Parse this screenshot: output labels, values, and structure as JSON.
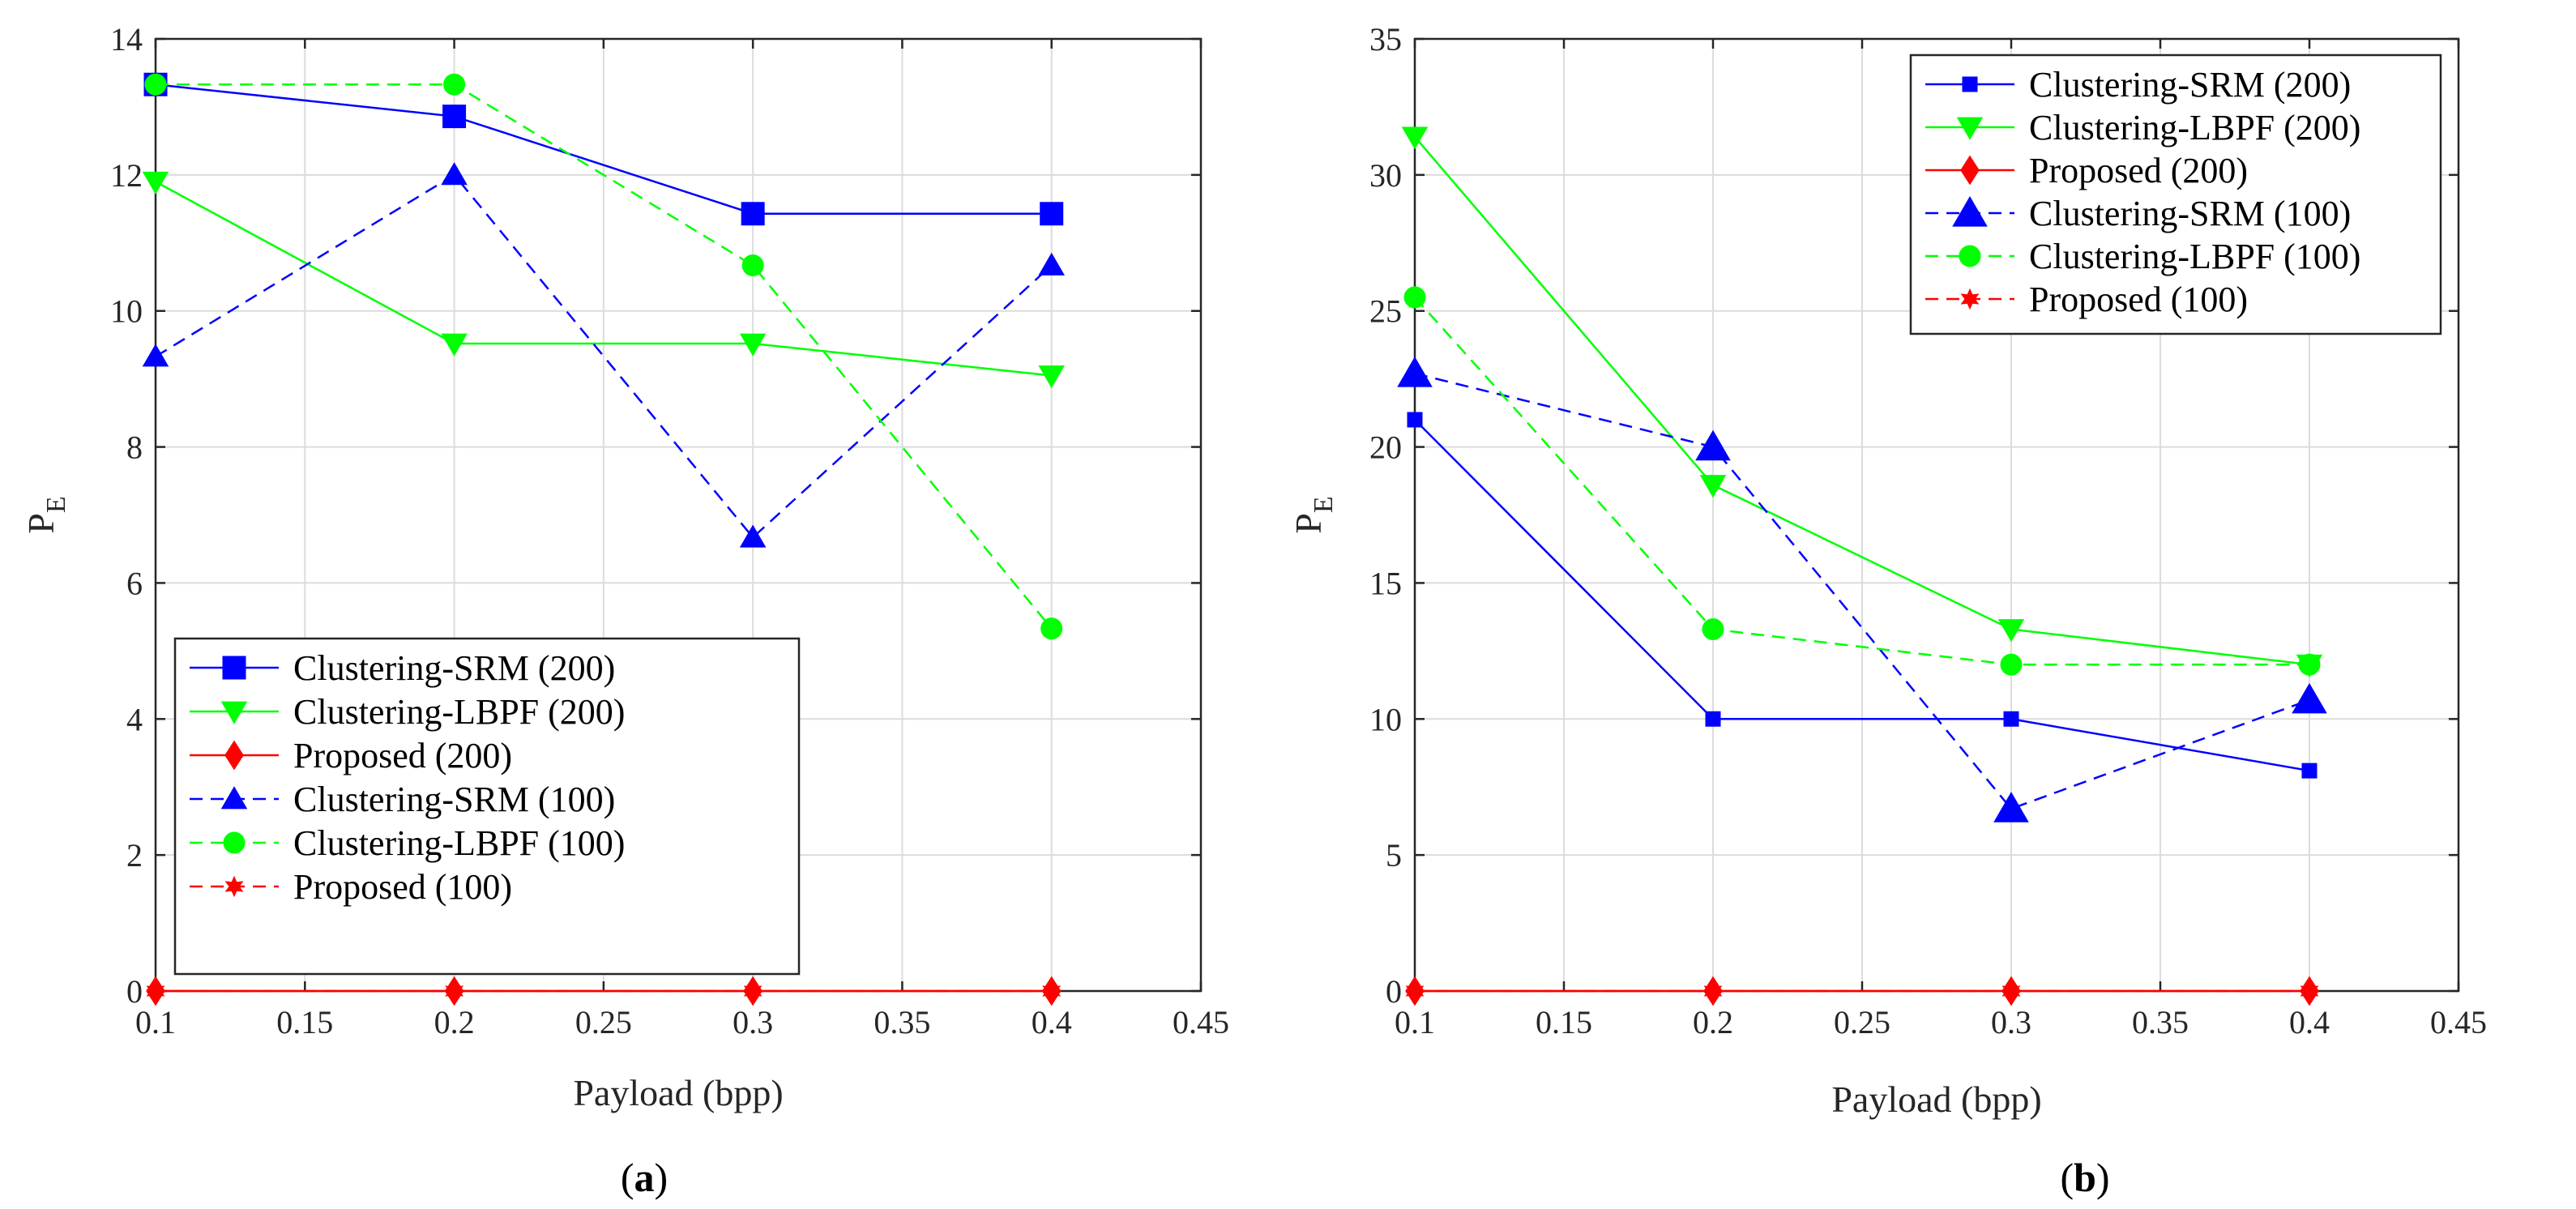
{
  "chart_data": [
    {
      "type": "line",
      "panel_label": "a",
      "xlabel": "Payload (bpp)",
      "ylabel": "P",
      "ylabel_sub": "E",
      "xlim": [
        0.1,
        0.45
      ],
      "ylim": [
        0,
        14
      ],
      "xticks": [
        0.1,
        0.15,
        0.2,
        0.25,
        0.3,
        0.35,
        0.4,
        0.45
      ],
      "xtick_labels": [
        "0.1",
        "0.15",
        "0.2",
        "0.25",
        "0.3",
        "0.35",
        "0.4",
        "0.45"
      ],
      "yticks": [
        0,
        2,
        4,
        6,
        8,
        10,
        12,
        14
      ],
      "ytick_labels": [
        "0",
        "2",
        "4",
        "6",
        "8",
        "10",
        "12",
        "14"
      ],
      "grid": true,
      "legend_position": "bottom-left",
      "x": [
        0.1,
        0.2,
        0.3,
        0.4
      ],
      "series": [
        {
          "name": "Clustering-SRM (200)",
          "values": [
            13.33,
            12.86,
            11.43,
            11.43
          ],
          "color": "#0000ff",
          "dash": "solid",
          "marker": "square",
          "msize": 14
        },
        {
          "name": "Clustering-LBPF (200)",
          "values": [
            11.9,
            9.52,
            9.52,
            9.05
          ],
          "color": "#00ff00",
          "dash": "solid",
          "marker": "triangle-down",
          "msize": 14
        },
        {
          "name": "Proposed (200)",
          "values": [
            0,
            0,
            0,
            0
          ],
          "color": "#ff0000",
          "dash": "solid",
          "marker": "diamond",
          "msize": 14
        },
        {
          "name": "Clustering-SRM (100)",
          "values": [
            9.33,
            12.0,
            6.67,
            10.67
          ],
          "color": "#0000ff",
          "dash": "dashed",
          "marker": "triangle-up",
          "msize": 14
        },
        {
          "name": "Clustering-LBPF (100)",
          "values": [
            13.33,
            13.33,
            10.67,
            5.33
          ],
          "color": "#00ff00",
          "dash": "dashed",
          "marker": "circle",
          "msize": 13
        },
        {
          "name": "Proposed (100)",
          "values": [
            0,
            0,
            0,
            0
          ],
          "color": "#ff0000",
          "dash": "dashed",
          "marker": "hexagram",
          "msize": 12
        }
      ]
    },
    {
      "type": "line",
      "panel_label": "b",
      "xlabel": "Payload (bpp)",
      "ylabel": "P",
      "ylabel_sub": "E",
      "xlim": [
        0.1,
        0.45
      ],
      "ylim": [
        0,
        35
      ],
      "xticks": [
        0.1,
        0.15,
        0.2,
        0.25,
        0.3,
        0.35,
        0.4,
        0.45
      ],
      "xtick_labels": [
        "0.1",
        "0.15",
        "0.2",
        "0.25",
        "0.3",
        "0.35",
        "0.4",
        "0.45"
      ],
      "yticks": [
        0,
        5,
        10,
        15,
        20,
        25,
        30,
        35
      ],
      "ytick_labels": [
        "0",
        "5",
        "10",
        "15",
        "20",
        "25",
        "30",
        "35"
      ],
      "grid": true,
      "legend_position": "top-right",
      "x": [
        0.1,
        0.2,
        0.3,
        0.4
      ],
      "series": [
        {
          "name": "Clustering-SRM (200)",
          "values": [
            21.0,
            10.0,
            10.0,
            8.1
          ],
          "color": "#0000ff",
          "dash": "solid",
          "marker": "square",
          "msize": 9
        },
        {
          "name": "Clustering-LBPF (200)",
          "values": [
            31.4,
            18.6,
            13.3,
            12.0
          ],
          "color": "#00ff00",
          "dash": "solid",
          "marker": "triangle-down",
          "msize": 14
        },
        {
          "name": "Proposed (200)",
          "values": [
            0,
            0,
            0,
            0
          ],
          "color": "#ff0000",
          "dash": "solid",
          "marker": "diamond",
          "msize": 14
        },
        {
          "name": "Clustering-SRM (100)",
          "values": [
            22.7,
            20.0,
            6.7,
            10.7
          ],
          "color": "#0000ff",
          "dash": "dashed",
          "marker": "triangle-up",
          "msize": 19
        },
        {
          "name": "Clustering-LBPF (100)",
          "values": [
            25.5,
            13.3,
            12.0,
            12.0
          ],
          "color": "#00ff00",
          "dash": "dashed",
          "marker": "circle",
          "msize": 13
        },
        {
          "name": "Proposed (100)",
          "values": [
            0,
            0,
            0,
            0
          ],
          "color": "#ff0000",
          "dash": "dashed",
          "marker": "hexagram",
          "msize": 12
        }
      ]
    }
  ]
}
